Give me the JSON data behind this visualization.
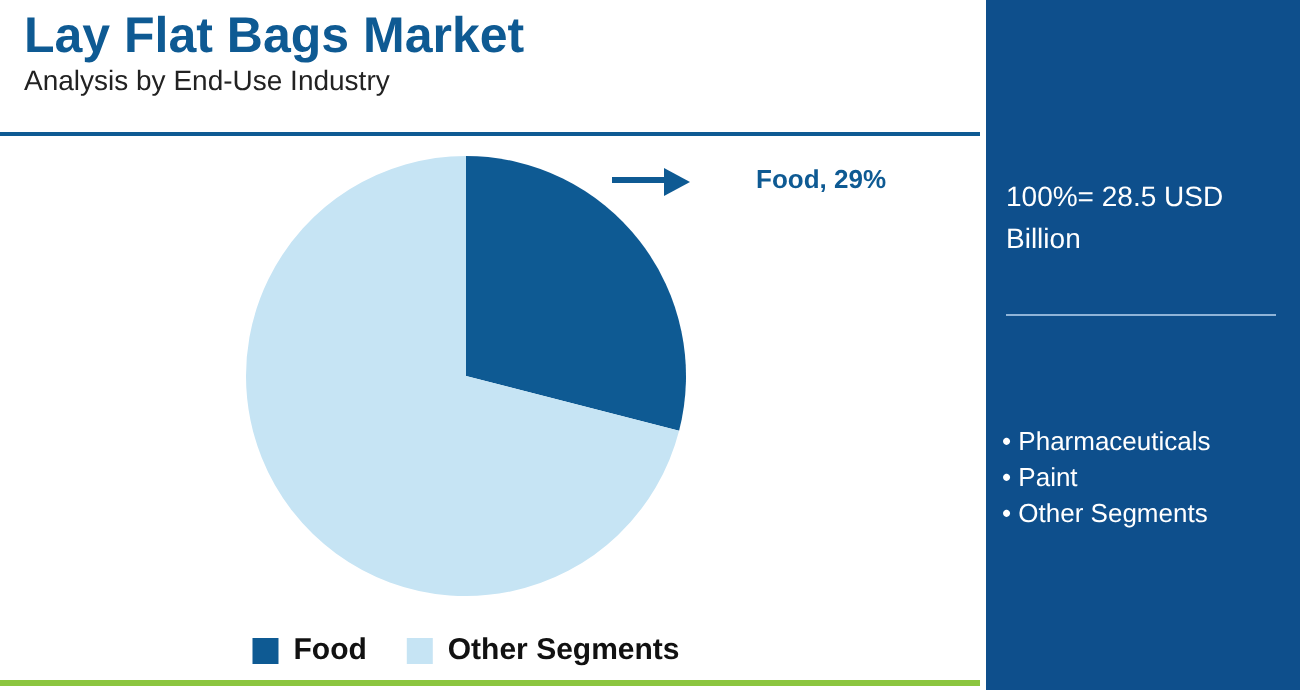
{
  "chart_data": {
    "type": "pie",
    "title": "Lay Flat Bags Market",
    "subtitle": "Analysis by End-Use Industry",
    "categories": [
      "Food",
      "Other Segments"
    ],
    "values": [
      29,
      71
    ],
    "colors": [
      "#0e5a93",
      "#c6e4f4"
    ],
    "legend": "bottom",
    "annotations": [
      "Food, 29%",
      "100%= 28.5 USD Billion",
      "• Pharmaceuticals",
      "• Paint",
      "• Other Segments"
    ]
  }
}
